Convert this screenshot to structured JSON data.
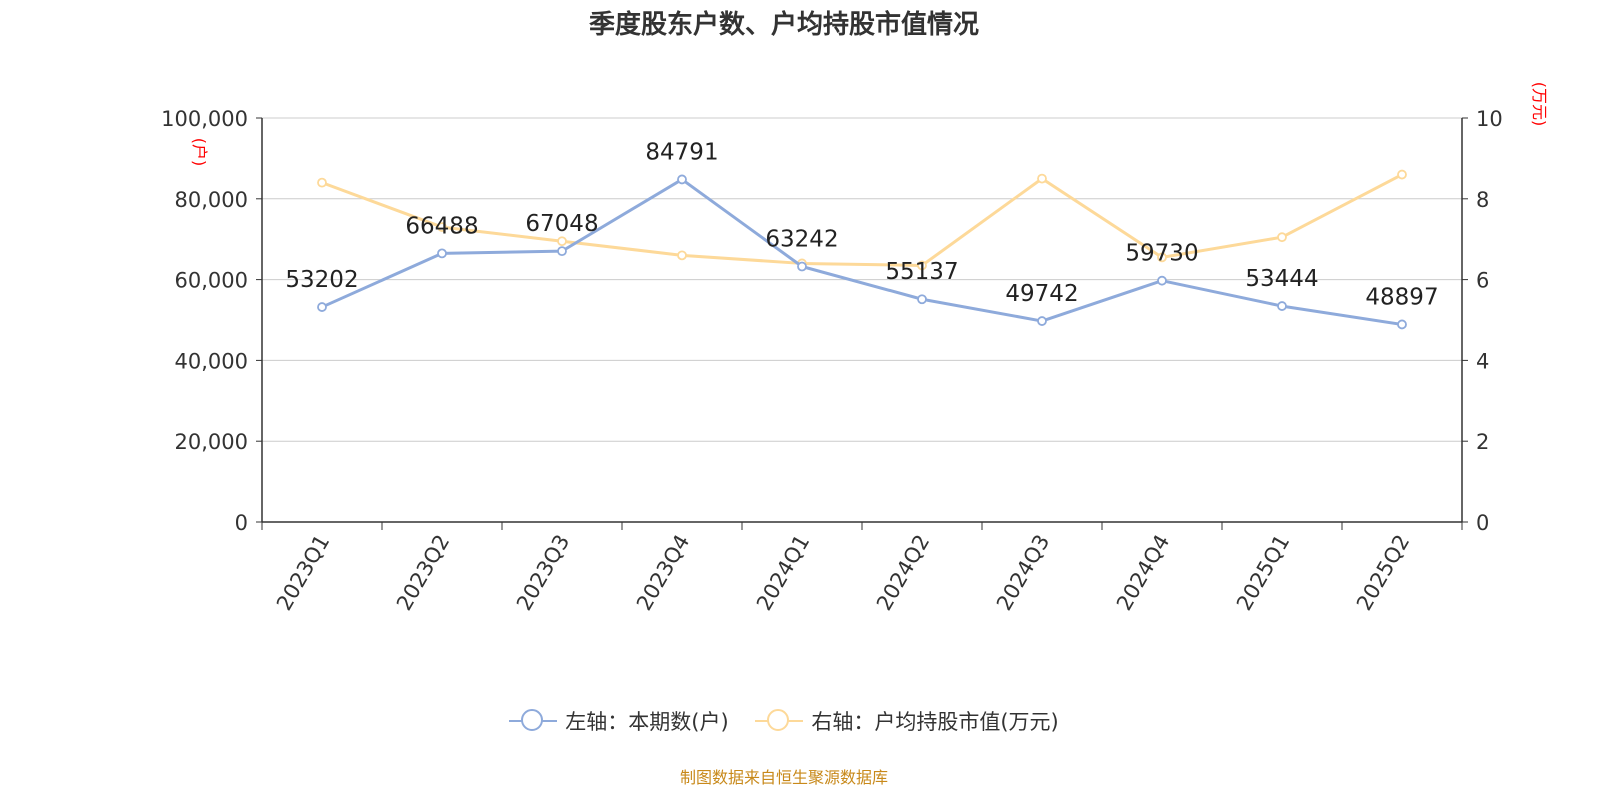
{
  "chart_data": {
    "type": "line",
    "title": "季度股东户数、户均持股市值情况",
    "categories": [
      "2023Q1",
      "2023Q2",
      "2023Q3",
      "2023Q4",
      "2024Q1",
      "2024Q2",
      "2024Q3",
      "2024Q4",
      "2025Q1",
      "2025Q2"
    ],
    "series": [
      {
        "name": "左轴：本期数(户)",
        "axis": "left",
        "color": "#8eaadb",
        "values": [
          53202,
          66488,
          67048,
          84791,
          63242,
          55137,
          49742,
          59730,
          53444,
          48897
        ],
        "labels": [
          "53202",
          "66488",
          "67048",
          "84791",
          "63242",
          "55137",
          "49742",
          "59730",
          "53444",
          "48897"
        ]
      },
      {
        "name": "右轴：户均持股市值(万元)",
        "axis": "right",
        "color": "#fdd999",
        "values": [
          8.4,
          7.3,
          6.95,
          6.6,
          6.4,
          6.35,
          8.5,
          6.55,
          7.05,
          8.6
        ]
      }
    ],
    "y_left": {
      "unit": "(户)",
      "ylim": [
        0,
        100000
      ],
      "ticks": [
        0,
        20000,
        40000,
        60000,
        80000,
        100000
      ],
      "tick_labels": [
        "0",
        "20,000",
        "40,000",
        "60,000",
        "80,000",
        "100,000"
      ]
    },
    "y_right": {
      "unit": "(万元)",
      "ylim": [
        0,
        10
      ],
      "ticks": [
        0,
        2,
        4,
        6,
        8,
        10
      ],
      "tick_labels": [
        "0",
        "2",
        "4",
        "6",
        "8",
        "10"
      ]
    },
    "grid": true,
    "legend_position": "bottom"
  },
  "source": "制图数据来自恒生聚源数据库",
  "colors": {
    "unit_label": "#ff0000",
    "source_text": "#c8891a",
    "grid": "#cccccc",
    "axis": "#333333"
  }
}
